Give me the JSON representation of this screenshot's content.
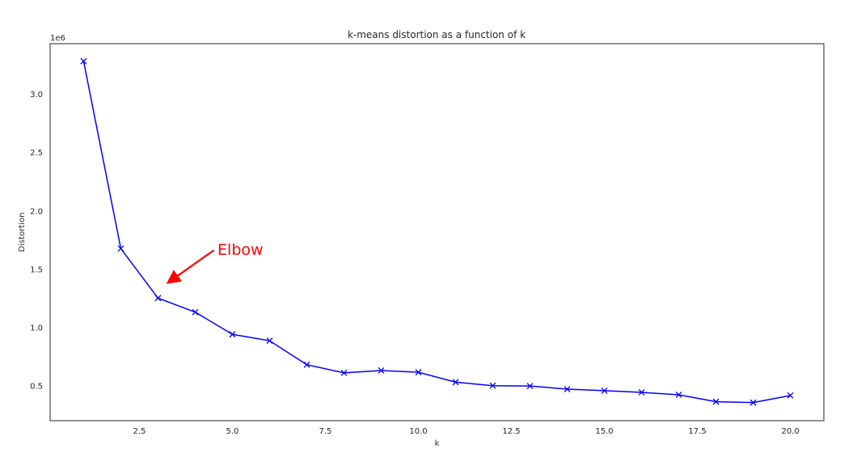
{
  "chart_data": {
    "type": "line",
    "title": "k-means distortion as a function of k",
    "xlabel": "k",
    "ylabel": "Distortion",
    "y_offset_text": "1e6",
    "xlim": [
      0.1,
      20.9
    ],
    "ylim": [
      0.2,
      3.43
    ],
    "x_ticks": [
      2.5,
      5.0,
      7.5,
      10.0,
      12.5,
      15.0,
      17.5,
      20.0
    ],
    "x_tick_labels": [
      "2.5",
      "5.0",
      "7.5",
      "10.0",
      "12.5",
      "15.0",
      "17.5",
      "20.0"
    ],
    "y_ticks": [
      0.5,
      1.0,
      1.5,
      2.0,
      2.5,
      3.0
    ],
    "y_tick_labels": [
      "0.5",
      "1.0",
      "1.5",
      "2.0",
      "2.5",
      "3.0"
    ],
    "grid": false,
    "series": [
      {
        "color": "#0000ff",
        "marker": "x",
        "x": [
          1,
          2,
          3,
          4,
          5,
          6,
          7,
          8,
          9,
          10,
          11,
          12,
          13,
          14,
          15,
          16,
          17,
          18,
          19,
          20
        ],
        "y": [
          3.28,
          1.675,
          1.25,
          1.13,
          0.94,
          0.885,
          0.68,
          0.61,
          0.63,
          0.615,
          0.53,
          0.5,
          0.497,
          0.47,
          0.457,
          0.443,
          0.422,
          0.363,
          0.355,
          0.416
        ]
      }
    ],
    "annotations": [
      {
        "text": "Elbow",
        "color": "#ff0000",
        "text_at": [
          4.6,
          1.67
        ],
        "arrow_from": [
          4.5,
          1.66
        ],
        "arrow_to": [
          3.3,
          1.39
        ]
      }
    ]
  }
}
